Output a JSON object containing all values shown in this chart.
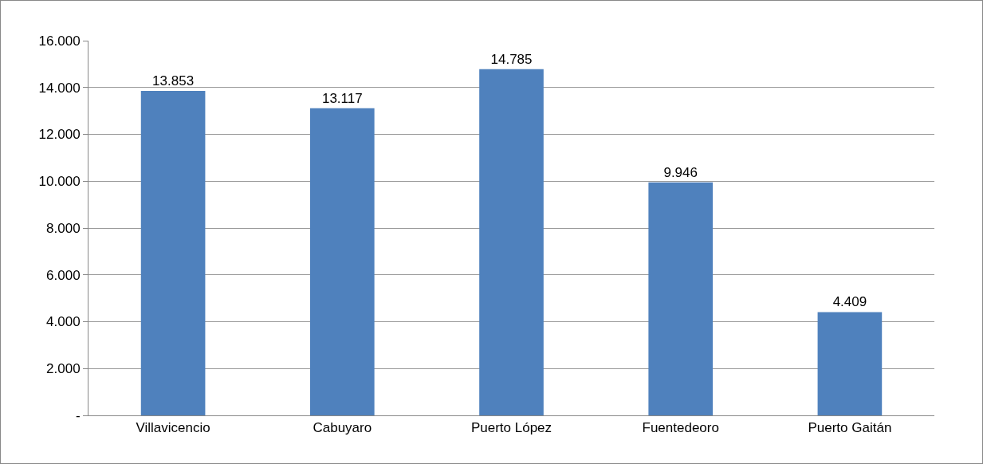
{
  "chart_data": {
    "type": "bar",
    "categories": [
      "Villavicencio",
      "Cabuyaro",
      "Puerto López",
      "Fuentedeoro",
      "Puerto Gaitán"
    ],
    "values": [
      13853,
      13117,
      14785,
      9946,
      4409
    ],
    "value_labels": [
      "13.853",
      "13.117",
      "14.785",
      "9.946",
      "4.409"
    ],
    "color": "#4f81bd",
    "ylim": [
      0,
      16000
    ],
    "yticks": [
      {
        "value": 0,
        "label": "-"
      },
      {
        "value": 2000,
        "label": "2.000"
      },
      {
        "value": 4000,
        "label": "4.000"
      },
      {
        "value": 6000,
        "label": "6.000"
      },
      {
        "value": 8000,
        "label": "8.000"
      },
      {
        "value": 10000,
        "label": "10.000"
      },
      {
        "value": 12000,
        "label": "12.000"
      },
      {
        "value": 14000,
        "label": "14.000"
      },
      {
        "value": 16000,
        "label": "16.000"
      }
    ],
    "grid": "y",
    "legend": false
  }
}
